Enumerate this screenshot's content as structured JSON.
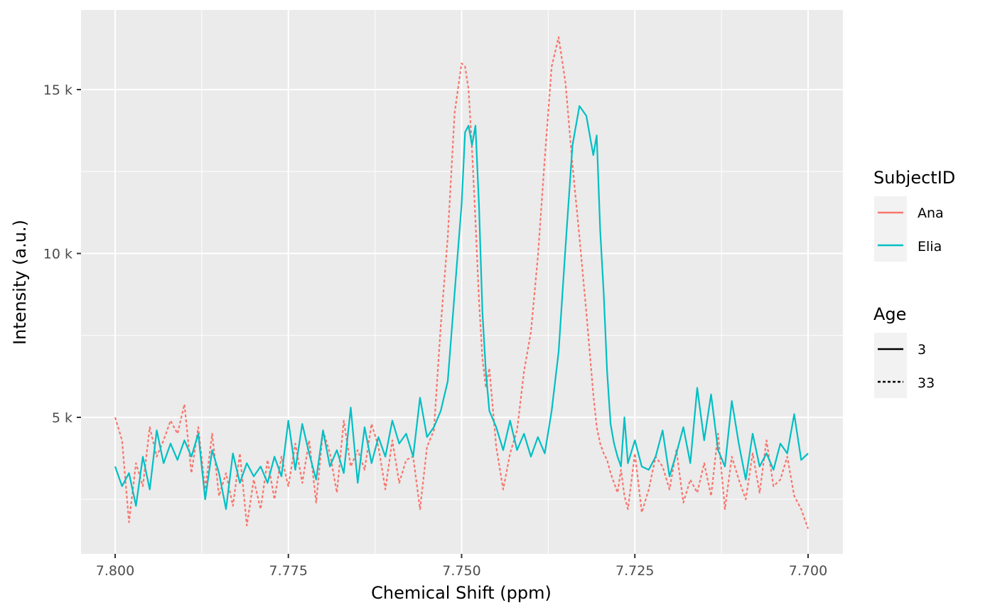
{
  "chart_data": {
    "type": "line",
    "xlabel": "Chemical Shift (ppm)",
    "ylabel": "Intensity (a.u.)",
    "xlim": [
      7.8,
      7.7
    ],
    "x_reversed": true,
    "ylim": [
      1500,
      16900
    ],
    "x_ticks": [
      7.8,
      7.775,
      7.75,
      7.725,
      7.7
    ],
    "x_tick_labels": [
      "7.800",
      "7.775",
      "7.750",
      "7.725",
      "7.700"
    ],
    "y_ticks": [
      5000,
      10000,
      15000
    ],
    "y_tick_labels": [
      "5 k",
      "10 k",
      "15 k"
    ],
    "grid": true,
    "background": "#ebebeb",
    "legend_position": "right",
    "legends": [
      {
        "title": "SubjectID",
        "entries": [
          {
            "label": "Ana",
            "color": "#f8766d",
            "linetype": "solid"
          },
          {
            "label": "Elia",
            "color": "#00bfc4",
            "linetype": "solid"
          }
        ]
      },
      {
        "title": "Age",
        "entries": [
          {
            "label": "3",
            "color": "#000000",
            "linetype": "solid"
          },
          {
            "label": "33",
            "color": "#000000",
            "linetype": "dotted"
          }
        ]
      }
    ],
    "series": [
      {
        "subject": "Ana",
        "age": "33",
        "color": "#f8766d",
        "linetype": "dotted",
        "x": [
          7.8,
          7.799,
          7.798,
          7.797,
          7.796,
          7.795,
          7.794,
          7.793,
          7.792,
          7.791,
          7.79,
          7.789,
          7.788,
          7.787,
          7.786,
          7.785,
          7.784,
          7.783,
          7.782,
          7.781,
          7.78,
          7.779,
          7.778,
          7.777,
          7.776,
          7.775,
          7.774,
          7.773,
          7.772,
          7.771,
          7.77,
          7.769,
          7.768,
          7.767,
          7.766,
          7.765,
          7.764,
          7.763,
          7.762,
          7.761,
          7.76,
          7.759,
          7.758,
          7.757,
          7.756,
          7.755,
          7.754,
          7.753,
          7.752,
          7.751,
          7.75,
          7.7495,
          7.749,
          7.7485,
          7.748,
          7.7475,
          7.747,
          7.7465,
          7.746,
          7.745,
          7.744,
          7.743,
          7.742,
          7.741,
          7.74,
          7.739,
          7.738,
          7.737,
          7.736,
          7.735,
          7.734,
          7.733,
          7.732,
          7.731,
          7.7305,
          7.73,
          7.7295,
          7.729,
          7.7285,
          7.728,
          7.7275,
          7.727,
          7.7265,
          7.726,
          7.725,
          7.724,
          7.723,
          7.722,
          7.721,
          7.72,
          7.719,
          7.718,
          7.717,
          7.716,
          7.715,
          7.714,
          7.713,
          7.712,
          7.711,
          7.71,
          7.709,
          7.708,
          7.707,
          7.706,
          7.705,
          7.704,
          7.703,
          7.702,
          7.701,
          7.7
        ],
        "y": [
          5000,
          4300,
          1800,
          3600,
          2900,
          4700,
          3800,
          4300,
          4900,
          4500,
          5400,
          3300,
          4700,
          2800,
          4500,
          2600,
          3300,
          2300,
          3900,
          1700,
          3100,
          2200,
          3700,
          2500,
          3800,
          2900,
          4200,
          3000,
          4300,
          2400,
          4600,
          3900,
          2700,
          4900,
          3500,
          4000,
          3400,
          4800,
          4100,
          2800,
          4300,
          3000,
          3700,
          3800,
          2200,
          4100,
          4600,
          7800,
          10500,
          14300,
          15800,
          15700,
          15000,
          13200,
          11000,
          8600,
          6800,
          5900,
          6500,
          4100,
          2800,
          3900,
          4600,
          6400,
          7600,
          9900,
          12900,
          15700,
          16600,
          15200,
          12700,
          10500,
          8200,
          5700,
          4700,
          4200,
          3900,
          3700,
          3300,
          3000,
          2700,
          3400,
          2600,
          2200,
          3900,
          2100,
          2800,
          3800,
          3500,
          2800,
          4000,
          2400,
          3100,
          2700,
          3600,
          2600,
          4500,
          2200,
          3800,
          3100,
          2500,
          3900,
          2700,
          4300,
          2900,
          3100,
          3800,
          2600,
          2200,
          1600
        ]
      },
      {
        "subject": "Elia",
        "age": "3",
        "color": "#00bfc4",
        "linetype": "solid",
        "x": [
          7.8,
          7.799,
          7.798,
          7.797,
          7.796,
          7.795,
          7.794,
          7.793,
          7.792,
          7.791,
          7.79,
          7.789,
          7.788,
          7.787,
          7.786,
          7.785,
          7.784,
          7.783,
          7.782,
          7.781,
          7.78,
          7.779,
          7.778,
          7.777,
          7.776,
          7.775,
          7.774,
          7.773,
          7.772,
          7.771,
          7.77,
          7.769,
          7.768,
          7.767,
          7.766,
          7.765,
          7.764,
          7.763,
          7.762,
          7.761,
          7.76,
          7.759,
          7.758,
          7.757,
          7.756,
          7.755,
          7.754,
          7.753,
          7.752,
          7.751,
          7.75,
          7.7495,
          7.749,
          7.7485,
          7.748,
          7.7475,
          7.747,
          7.7465,
          7.746,
          7.745,
          7.744,
          7.743,
          7.742,
          7.741,
          7.74,
          7.739,
          7.738,
          7.737,
          7.736,
          7.735,
          7.734,
          7.733,
          7.732,
          7.731,
          7.7305,
          7.73,
          7.7295,
          7.729,
          7.7285,
          7.728,
          7.7275,
          7.727,
          7.7265,
          7.726,
          7.725,
          7.724,
          7.723,
          7.722,
          7.721,
          7.72,
          7.719,
          7.718,
          7.717,
          7.716,
          7.715,
          7.714,
          7.713,
          7.712,
          7.711,
          7.71,
          7.709,
          7.708,
          7.707,
          7.706,
          7.705,
          7.704,
          7.703,
          7.702,
          7.701,
          7.7
        ],
        "y": [
          3500,
          2900,
          3300,
          2300,
          3800,
          2800,
          4600,
          3600,
          4200,
          3700,
          4300,
          3800,
          4500,
          2500,
          4000,
          3300,
          2200,
          3900,
          3000,
          3600,
          3200,
          3500,
          3000,
          3800,
          3200,
          4900,
          3400,
          4800,
          3900,
          3100,
          4600,
          3500,
          4000,
          3300,
          5300,
          3000,
          4700,
          3600,
          4400,
          3800,
          4900,
          4200,
          4500,
          3800,
          5600,
          4400,
          4700,
          5200,
          6100,
          8800,
          11500,
          13700,
          13900,
          13300,
          13900,
          11500,
          8200,
          6400,
          5200,
          4700,
          4000,
          4900,
          4000,
          4500,
          3800,
          4400,
          3900,
          5200,
          7000,
          10200,
          13300,
          14500,
          14200,
          13000,
          13600,
          10700,
          8800,
          6400,
          4800,
          4200,
          3800,
          3500,
          5000,
          3600,
          4300,
          3500,
          3400,
          3800,
          4600,
          3200,
          3900,
          4700,
          3600,
          5900,
          4300,
          5700,
          4000,
          3500,
          5500,
          4200,
          3100,
          4500,
          3500,
          3900,
          3400,
          4200,
          3900,
          5100,
          3700,
          3900
        ]
      }
    ]
  }
}
